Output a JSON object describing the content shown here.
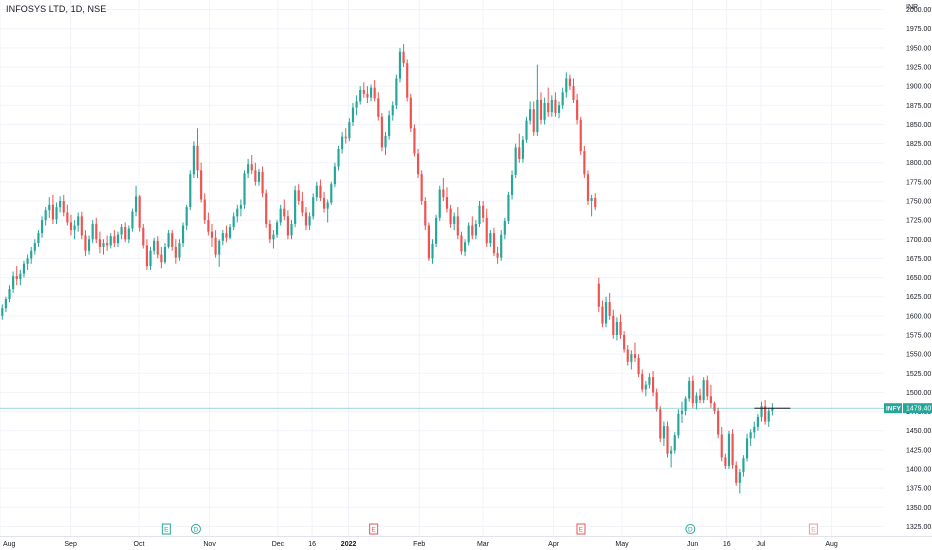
{
  "header": {
    "symbol_line": "INFOSYS LTD, 1D, NSE"
  },
  "chart_data": {
    "type": "candlestick",
    "currency": "INR",
    "ylim": [
      1312.5,
      2012.5
    ],
    "y_ticks": [
      2000,
      1975,
      1950,
      1925,
      1900,
      1875,
      1850,
      1825,
      1800,
      1775,
      1750,
      1725,
      1700,
      1675,
      1650,
      1625,
      1600,
      1575,
      1550,
      1525,
      1500,
      1475,
      1450,
      1425,
      1400,
      1375,
      1350,
      1325
    ],
    "y_tick_labels": [
      "2000.00",
      "1975.00",
      "1950.00",
      "1925.00",
      "1900.00",
      "1875.00",
      "1850.00",
      "1825.00",
      "1800.00",
      "1775.00",
      "1750.00",
      "1725.00",
      "1700.00",
      "1675.00",
      "1650.00",
      "1625.00",
      "1600.00",
      "1575.00",
      "1550.00",
      "1525.00",
      "1500.00",
      "1475.00",
      "1450.00",
      "1425.00",
      "1400.00",
      "1375.00",
      "1350.00",
      "1325.00"
    ],
    "x_range": [
      "2021-08-01",
      "2022-08-24"
    ],
    "x_ticks": [
      {
        "date": "2021-08-01",
        "label": "Aug",
        "bold": false
      },
      {
        "date": "2021-09-01",
        "label": "Sep",
        "bold": false
      },
      {
        "date": "2021-10-01",
        "label": "Oct",
        "bold": false
      },
      {
        "date": "2021-11-01",
        "label": "Nov",
        "bold": false
      },
      {
        "date": "2021-12-01",
        "label": "Dec",
        "bold": false
      },
      {
        "date": "2021-12-16",
        "label": "16",
        "bold": false
      },
      {
        "date": "2022-01-01",
        "label": "2022",
        "bold": true
      },
      {
        "date": "2022-02-01",
        "label": "Feb",
        "bold": false
      },
      {
        "date": "2022-03-01",
        "label": "Mar",
        "bold": false
      },
      {
        "date": "2022-04-01",
        "label": "Apr",
        "bold": false
      },
      {
        "date": "2022-05-01",
        "label": "May",
        "bold": false
      },
      {
        "date": "2022-06-01",
        "label": "Jun",
        "bold": false
      },
      {
        "date": "2022-06-16",
        "label": "16",
        "bold": false
      },
      {
        "date": "2022-07-01",
        "label": "Jul",
        "bold": false
      },
      {
        "date": "2022-08-01",
        "label": "Aug",
        "bold": false
      }
    ],
    "last_price": 1479.4,
    "last_price_label": "1479.40",
    "price_tag_name": "INFY",
    "events": [
      {
        "date": "2021-10-13",
        "letter": "E",
        "color": "#26a69a"
      },
      {
        "date": "2021-10-26",
        "letter": "D",
        "color": "#26a69a"
      },
      {
        "date": "2022-01-12",
        "letter": "E",
        "color": "#ef5350"
      },
      {
        "date": "2022-04-13",
        "letter": "E",
        "color": "#ef5350"
      },
      {
        "date": "2022-05-31",
        "letter": "D",
        "color": "#26a69a"
      },
      {
        "date": "2022-07-24",
        "letter": "E",
        "color": "#ef9a9a",
        "outline": true
      }
    ],
    "candles": [
      [
        1600,
        1615,
        1595,
        1610
      ],
      [
        1610,
        1625,
        1605,
        1622
      ],
      [
        1622,
        1640,
        1618,
        1635
      ],
      [
        1635,
        1658,
        1630,
        1652
      ],
      [
        1652,
        1665,
        1640,
        1648
      ],
      [
        1648,
        1660,
        1640,
        1655
      ],
      [
        1655,
        1672,
        1650,
        1668
      ],
      [
        1668,
        1680,
        1660,
        1675
      ],
      [
        1675,
        1690,
        1668,
        1685
      ],
      [
        1685,
        1700,
        1680,
        1695
      ],
      [
        1695,
        1712,
        1690,
        1708
      ],
      [
        1708,
        1730,
        1702,
        1725
      ],
      [
        1725,
        1742,
        1718,
        1738
      ],
      [
        1738,
        1755,
        1728,
        1745
      ],
      [
        1745,
        1758,
        1720,
        1726
      ],
      [
        1726,
        1748,
        1720,
        1742
      ],
      [
        1742,
        1756,
        1735,
        1750
      ],
      [
        1750,
        1758,
        1730,
        1735
      ],
      [
        1735,
        1745,
        1718,
        1722
      ],
      [
        1722,
        1732,
        1705,
        1712
      ],
      [
        1712,
        1725,
        1700,
        1718
      ],
      [
        1718,
        1735,
        1710,
        1730
      ],
      [
        1730,
        1736,
        1700,
        1705
      ],
      [
        1705,
        1712,
        1678,
        1685
      ],
      [
        1685,
        1705,
        1680,
        1700
      ],
      [
        1700,
        1725,
        1695,
        1720
      ],
      [
        1720,
        1728,
        1695,
        1700
      ],
      [
        1700,
        1710,
        1682,
        1690
      ],
      [
        1690,
        1700,
        1680,
        1695
      ],
      [
        1695,
        1705,
        1685,
        1692
      ],
      [
        1692,
        1708,
        1688,
        1704
      ],
      [
        1704,
        1712,
        1690,
        1695
      ],
      [
        1695,
        1710,
        1690,
        1706
      ],
      [
        1706,
        1720,
        1700,
        1716
      ],
      [
        1716,
        1722,
        1696,
        1700
      ],
      [
        1700,
        1718,
        1695,
        1714
      ],
      [
        1714,
        1740,
        1710,
        1736
      ],
      [
        1736,
        1770,
        1730,
        1756
      ],
      [
        1756,
        1758,
        1710,
        1715
      ],
      [
        1715,
        1720,
        1688,
        1692
      ],
      [
        1692,
        1700,
        1660,
        1665
      ],
      [
        1665,
        1690,
        1660,
        1685
      ],
      [
        1685,
        1702,
        1680,
        1698
      ],
      [
        1698,
        1704,
        1675,
        1680
      ],
      [
        1680,
        1690,
        1662,
        1670
      ],
      [
        1670,
        1695,
        1668,
        1690
      ],
      [
        1690,
        1712,
        1688,
        1708
      ],
      [
        1708,
        1712,
        1685,
        1690
      ],
      [
        1690,
        1700,
        1668,
        1676
      ],
      [
        1676,
        1700,
        1672,
        1695
      ],
      [
        1695,
        1722,
        1690,
        1718
      ],
      [
        1718,
        1745,
        1712,
        1742
      ],
      [
        1742,
        1790,
        1738,
        1785
      ],
      [
        1785,
        1828,
        1780,
        1822
      ],
      [
        1822,
        1845,
        1780,
        1790
      ],
      [
        1790,
        1800,
        1748,
        1752
      ],
      [
        1752,
        1760,
        1720,
        1725
      ],
      [
        1725,
        1735,
        1705,
        1710
      ],
      [
        1710,
        1720,
        1690,
        1702
      ],
      [
        1702,
        1712,
        1676,
        1680
      ],
      [
        1680,
        1700,
        1664,
        1698
      ],
      [
        1698,
        1712,
        1692,
        1708
      ],
      [
        1708,
        1718,
        1696,
        1702
      ],
      [
        1702,
        1720,
        1700,
        1716
      ],
      [
        1716,
        1735,
        1712,
        1730
      ],
      [
        1730,
        1745,
        1722,
        1740
      ],
      [
        1740,
        1752,
        1730,
        1745
      ],
      [
        1745,
        1790,
        1740,
        1786
      ],
      [
        1786,
        1805,
        1780,
        1798
      ],
      [
        1798,
        1810,
        1785,
        1790
      ],
      [
        1790,
        1800,
        1770,
        1775
      ],
      [
        1775,
        1792,
        1770,
        1788
      ],
      [
        1788,
        1795,
        1755,
        1760
      ],
      [
        1760,
        1765,
        1715,
        1720
      ],
      [
        1720,
        1725,
        1695,
        1700
      ],
      [
        1700,
        1712,
        1688,
        1706
      ],
      [
        1706,
        1725,
        1702,
        1722
      ],
      [
        1722,
        1745,
        1718,
        1740
      ],
      [
        1740,
        1752,
        1725,
        1730
      ],
      [
        1730,
        1738,
        1700,
        1705
      ],
      [
        1705,
        1725,
        1700,
        1720
      ],
      [
        1720,
        1770,
        1716,
        1764
      ],
      [
        1764,
        1772,
        1745,
        1750
      ],
      [
        1750,
        1762,
        1730,
        1735
      ],
      [
        1735,
        1742,
        1712,
        1718
      ],
      [
        1718,
        1735,
        1712,
        1730
      ],
      [
        1730,
        1760,
        1726,
        1755
      ],
      [
        1755,
        1775,
        1750,
        1770
      ],
      [
        1770,
        1778,
        1750,
        1754
      ],
      [
        1754,
        1762,
        1735,
        1740
      ],
      [
        1740,
        1752,
        1722,
        1748
      ],
      [
        1748,
        1775,
        1745,
        1772
      ],
      [
        1772,
        1800,
        1768,
        1795
      ],
      [
        1795,
        1822,
        1790,
        1818
      ],
      [
        1818,
        1840,
        1812,
        1834
      ],
      [
        1834,
        1845,
        1825,
        1832
      ],
      [
        1832,
        1858,
        1828,
        1853
      ],
      [
        1853,
        1878,
        1848,
        1872
      ],
      [
        1872,
        1888,
        1862,
        1880
      ],
      [
        1880,
        1900,
        1876,
        1895
      ],
      [
        1895,
        1905,
        1885,
        1890
      ],
      [
        1890,
        1900,
        1878,
        1885
      ],
      [
        1885,
        1902,
        1880,
        1898
      ],
      [
        1898,
        1908,
        1880,
        1884
      ],
      [
        1884,
        1892,
        1855,
        1860
      ],
      [
        1860,
        1865,
        1815,
        1820
      ],
      [
        1820,
        1840,
        1810,
        1835
      ],
      [
        1835,
        1868,
        1830,
        1862
      ],
      [
        1862,
        1880,
        1855,
        1875
      ],
      [
        1875,
        1915,
        1870,
        1910
      ],
      [
        1910,
        1950,
        1905,
        1945
      ],
      [
        1945,
        1955,
        1925,
        1930
      ],
      [
        1930,
        1935,
        1880,
        1885
      ],
      [
        1885,
        1890,
        1840,
        1845
      ],
      [
        1845,
        1850,
        1808,
        1812
      ],
      [
        1812,
        1818,
        1780,
        1785
      ],
      [
        1785,
        1790,
        1745,
        1750
      ],
      [
        1750,
        1755,
        1712,
        1718
      ],
      [
        1718,
        1722,
        1672,
        1675
      ],
      [
        1675,
        1700,
        1668,
        1694
      ],
      [
        1694,
        1732,
        1690,
        1728
      ],
      [
        1728,
        1770,
        1724,
        1765
      ],
      [
        1765,
        1780,
        1750,
        1755
      ],
      [
        1755,
        1768,
        1735,
        1740
      ],
      [
        1740,
        1745,
        1715,
        1720
      ],
      [
        1720,
        1735,
        1712,
        1730
      ],
      [
        1730,
        1742,
        1700,
        1705
      ],
      [
        1705,
        1710,
        1680,
        1684
      ],
      [
        1684,
        1700,
        1678,
        1696
      ],
      [
        1696,
        1722,
        1692,
        1718
      ],
      [
        1718,
        1730,
        1700,
        1705
      ],
      [
        1705,
        1725,
        1700,
        1720
      ],
      [
        1720,
        1750,
        1716,
        1744
      ],
      [
        1744,
        1750,
        1722,
        1728
      ],
      [
        1728,
        1740,
        1690,
        1695
      ],
      [
        1695,
        1712,
        1690,
        1708
      ],
      [
        1708,
        1715,
        1678,
        1682
      ],
      [
        1682,
        1690,
        1668,
        1676
      ],
      [
        1676,
        1712,
        1672,
        1706
      ],
      [
        1706,
        1728,
        1700,
        1724
      ],
      [
        1724,
        1762,
        1720,
        1758
      ],
      [
        1758,
        1790,
        1752,
        1784
      ],
      [
        1784,
        1825,
        1780,
        1820
      ],
      [
        1820,
        1838,
        1800,
        1805
      ],
      [
        1805,
        1835,
        1800,
        1830
      ],
      [
        1830,
        1860,
        1826,
        1855
      ],
      [
        1855,
        1880,
        1850,
        1870
      ],
      [
        1870,
        1880,
        1835,
        1840
      ],
      [
        1840,
        1928,
        1835,
        1882
      ],
      [
        1882,
        1892,
        1850,
        1856
      ],
      [
        1856,
        1885,
        1850,
        1878
      ],
      [
        1878,
        1898,
        1860,
        1866
      ],
      [
        1866,
        1888,
        1860,
        1882
      ],
      [
        1882,
        1892,
        1860,
        1865
      ],
      [
        1865,
        1880,
        1858,
        1875
      ],
      [
        1875,
        1898,
        1870,
        1892
      ],
      [
        1892,
        1918,
        1885,
        1910
      ],
      [
        1910,
        1915,
        1895,
        1900
      ],
      [
        1900,
        1910,
        1878,
        1882
      ],
      [
        1882,
        1890,
        1850,
        1856
      ],
      [
        1856,
        1860,
        1810,
        1815
      ],
      [
        1815,
        1822,
        1780,
        1785
      ],
      [
        1785,
        1790,
        1745,
        1750
      ],
      [
        1750,
        1758,
        1730,
        1754
      ],
      [
        1754,
        1760,
        1738,
        1742
      ],
      [
        1642,
        1650,
        1605,
        1612
      ],
      [
        1612,
        1620,
        1585,
        1590
      ],
      [
        1590,
        1625,
        1585,
        1618
      ],
      [
        1618,
        1630,
        1595,
        1600
      ],
      [
        1600,
        1608,
        1570,
        1575
      ],
      [
        1575,
        1598,
        1568,
        1592
      ],
      [
        1592,
        1602,
        1570,
        1575
      ],
      [
        1575,
        1580,
        1552,
        1556
      ],
      [
        1556,
        1562,
        1535,
        1540
      ],
      [
        1540,
        1555,
        1530,
        1550
      ],
      [
        1550,
        1565,
        1540,
        1545
      ],
      [
        1545,
        1550,
        1520,
        1524
      ],
      [
        1524,
        1530,
        1500,
        1504
      ],
      [
        1504,
        1515,
        1495,
        1510
      ],
      [
        1510,
        1525,
        1505,
        1520
      ],
      [
        1520,
        1528,
        1495,
        1500
      ],
      [
        1500,
        1505,
        1475,
        1478
      ],
      [
        1478,
        1482,
        1435,
        1440
      ],
      [
        1440,
        1462,
        1430,
        1456
      ],
      [
        1456,
        1462,
        1415,
        1420
      ],
      [
        1420,
        1430,
        1402,
        1424
      ],
      [
        1424,
        1448,
        1420,
        1444
      ],
      [
        1444,
        1478,
        1440,
        1472
      ],
      [
        1472,
        1488,
        1460,
        1476
      ],
      [
        1476,
        1495,
        1470,
        1492
      ],
      [
        1492,
        1520,
        1488,
        1515
      ],
      [
        1515,
        1522,
        1480,
        1486
      ],
      [
        1486,
        1500,
        1478,
        1496
      ],
      [
        1496,
        1505,
        1486,
        1490
      ],
      [
        1490,
        1520,
        1486,
        1516
      ],
      [
        1516,
        1522,
        1490,
        1495
      ],
      [
        1495,
        1510,
        1480,
        1486
      ],
      [
        1486,
        1488,
        1472,
        1476
      ],
      [
        1476,
        1480,
        1440,
        1445
      ],
      [
        1445,
        1455,
        1410,
        1415
      ],
      [
        1415,
        1420,
        1400,
        1404
      ],
      [
        1404,
        1450,
        1400,
        1446
      ],
      [
        1446,
        1452,
        1400,
        1405
      ],
      [
        1405,
        1410,
        1378,
        1382
      ],
      [
        1382,
        1400,
        1368,
        1396
      ],
      [
        1396,
        1418,
        1390,
        1414
      ],
      [
        1414,
        1446,
        1410,
        1440
      ],
      [
        1440,
        1452,
        1430,
        1448
      ],
      [
        1448,
        1462,
        1440,
        1455
      ],
      [
        1455,
        1472,
        1450,
        1468
      ],
      [
        1468,
        1488,
        1462,
        1482
      ],
      [
        1482,
        1490,
        1458,
        1462
      ],
      [
        1462,
        1480,
        1455,
        1476
      ],
      [
        1476,
        1486,
        1470,
        1479
      ]
    ]
  }
}
